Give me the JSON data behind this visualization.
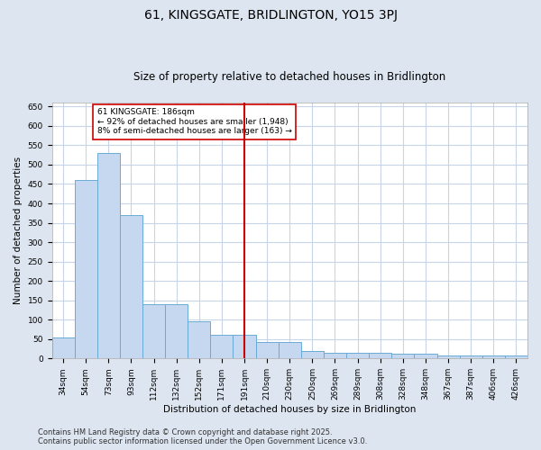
{
  "title": "61, KINGSGATE, BRIDLINGTON, YO15 3PJ",
  "subtitle": "Size of property relative to detached houses in Bridlington",
  "xlabel": "Distribution of detached houses by size in Bridlington",
  "ylabel": "Number of detached properties",
  "categories": [
    "34sqm",
    "54sqm",
    "73sqm",
    "93sqm",
    "112sqm",
    "132sqm",
    "152sqm",
    "171sqm",
    "191sqm",
    "210sqm",
    "230sqm",
    "250sqm",
    "269sqm",
    "289sqm",
    "308sqm",
    "328sqm",
    "348sqm",
    "367sqm",
    "387sqm",
    "406sqm",
    "426sqm"
  ],
  "values": [
    55,
    460,
    530,
    370,
    140,
    140,
    95,
    60,
    60,
    42,
    42,
    20,
    15,
    15,
    15,
    12,
    12,
    7,
    7,
    7,
    7
  ],
  "bar_color": "#c5d8f0",
  "bar_edge_color": "#6aaad4",
  "vline_x_index": 8,
  "vline_color": "#cc0000",
  "annotation_text": "61 KINGSGATE: 186sqm\n← 92% of detached houses are smaller (1,948)\n8% of semi-detached houses are larger (163) →",
  "ylim": [
    0,
    660
  ],
  "yticks": [
    0,
    50,
    100,
    150,
    200,
    250,
    300,
    350,
    400,
    450,
    500,
    550,
    600,
    650
  ],
  "footer_line1": "Contains HM Land Registry data © Crown copyright and database right 2025.",
  "footer_line2": "Contains public sector information licensed under the Open Government Licence v3.0.",
  "fig_bg_color": "#dde5f0",
  "plot_bg_color": "#ffffff",
  "grid_color": "#c8d4e8",
  "title_fontsize": 10,
  "subtitle_fontsize": 8.5,
  "axis_label_fontsize": 7.5,
  "tick_fontsize": 6.5,
  "footer_fontsize": 6
}
